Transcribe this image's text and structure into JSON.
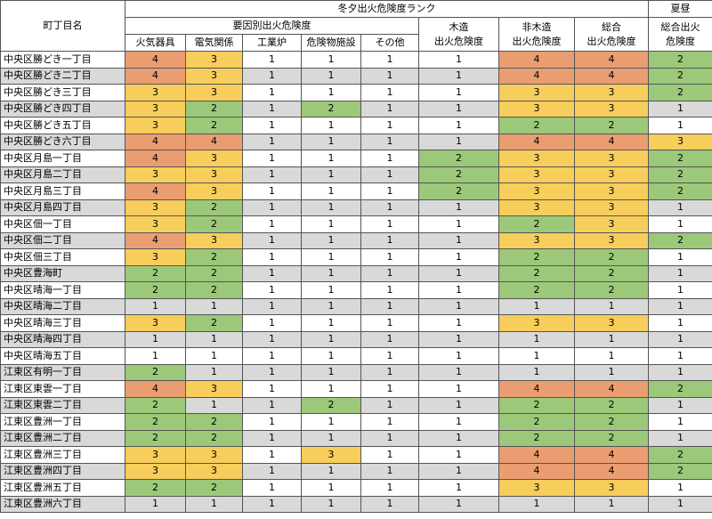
{
  "header": {
    "name_col": "町丁目名",
    "group_title": "冬夕出火危険度ランク",
    "summer_title": "夏昼",
    "factor_title": "要因別出火危険度",
    "factors": [
      "火気器具",
      "電気関係",
      "工業炉",
      "危険物施設",
      "その他"
    ],
    "wood": "木造\n出火危険度",
    "nonwood": "非木造\n出火危険度",
    "total": "総合\n出火危険度",
    "summer_total": "総合出火\n危険度"
  },
  "rows": [
    [
      "中央区勝どき一丁目",
      4,
      3,
      1,
      1,
      1,
      1,
      4,
      4,
      2
    ],
    [
      "中央区勝どき二丁目",
      4,
      3,
      1,
      1,
      1,
      1,
      4,
      4,
      2
    ],
    [
      "中央区勝どき三丁目",
      3,
      3,
      1,
      1,
      1,
      1,
      3,
      3,
      2
    ],
    [
      "中央区勝どき四丁目",
      3,
      2,
      1,
      2,
      1,
      1,
      3,
      3,
      1
    ],
    [
      "中央区勝どき五丁目",
      3,
      2,
      1,
      1,
      1,
      1,
      2,
      2,
      1
    ],
    [
      "中央区勝どき六丁目",
      4,
      4,
      1,
      1,
      1,
      1,
      4,
      4,
      3
    ],
    [
      "中央区月島一丁目",
      4,
      3,
      1,
      1,
      1,
      2,
      3,
      3,
      2
    ],
    [
      "中央区月島二丁目",
      3,
      3,
      1,
      1,
      1,
      2,
      3,
      3,
      2
    ],
    [
      "中央区月島三丁目",
      4,
      3,
      1,
      1,
      1,
      2,
      3,
      3,
      2
    ],
    [
      "中央区月島四丁目",
      3,
      2,
      1,
      1,
      1,
      1,
      3,
      3,
      1
    ],
    [
      "中央区佃一丁目",
      3,
      2,
      1,
      1,
      1,
      1,
      2,
      3,
      1
    ],
    [
      "中央区佃二丁目",
      4,
      3,
      1,
      1,
      1,
      1,
      3,
      3,
      2
    ],
    [
      "中央区佃三丁目",
      3,
      2,
      1,
      1,
      1,
      1,
      2,
      2,
      1
    ],
    [
      "中央区豊海町",
      2,
      2,
      1,
      1,
      1,
      1,
      2,
      2,
      1
    ],
    [
      "中央区晴海一丁目",
      2,
      2,
      1,
      1,
      1,
      1,
      2,
      2,
      1
    ],
    [
      "中央区晴海二丁目",
      1,
      1,
      1,
      1,
      1,
      1,
      1,
      1,
      1
    ],
    [
      "中央区晴海三丁目",
      3,
      2,
      1,
      1,
      1,
      1,
      3,
      3,
      1
    ],
    [
      "中央区晴海四丁目",
      1,
      1,
      1,
      1,
      1,
      1,
      1,
      1,
      1
    ],
    [
      "中央区晴海五丁目",
      1,
      1,
      1,
      1,
      1,
      1,
      1,
      1,
      1
    ],
    [
      "江東区有明一丁目",
      2,
      1,
      1,
      1,
      1,
      1,
      1,
      1,
      1
    ],
    [
      "江東区東雲一丁目",
      4,
      3,
      1,
      1,
      1,
      1,
      4,
      4,
      2
    ],
    [
      "江東区東雲二丁目",
      2,
      1,
      1,
      2,
      1,
      1,
      2,
      2,
      1
    ],
    [
      "江東区豊洲一丁目",
      2,
      2,
      1,
      1,
      1,
      1,
      2,
      2,
      1
    ],
    [
      "江東区豊洲二丁目",
      2,
      2,
      1,
      1,
      1,
      1,
      2,
      2,
      1
    ],
    [
      "江東区豊洲三丁目",
      3,
      3,
      1,
      3,
      1,
      1,
      4,
      4,
      2
    ],
    [
      "江東区豊洲四丁目",
      3,
      3,
      1,
      1,
      1,
      1,
      4,
      4,
      2
    ],
    [
      "江東区豊洲五丁目",
      2,
      2,
      1,
      1,
      1,
      1,
      3,
      3,
      1
    ],
    [
      "江東区豊洲六丁目",
      1,
      1,
      1,
      1,
      1,
      1,
      1,
      1,
      1
    ]
  ]
}
